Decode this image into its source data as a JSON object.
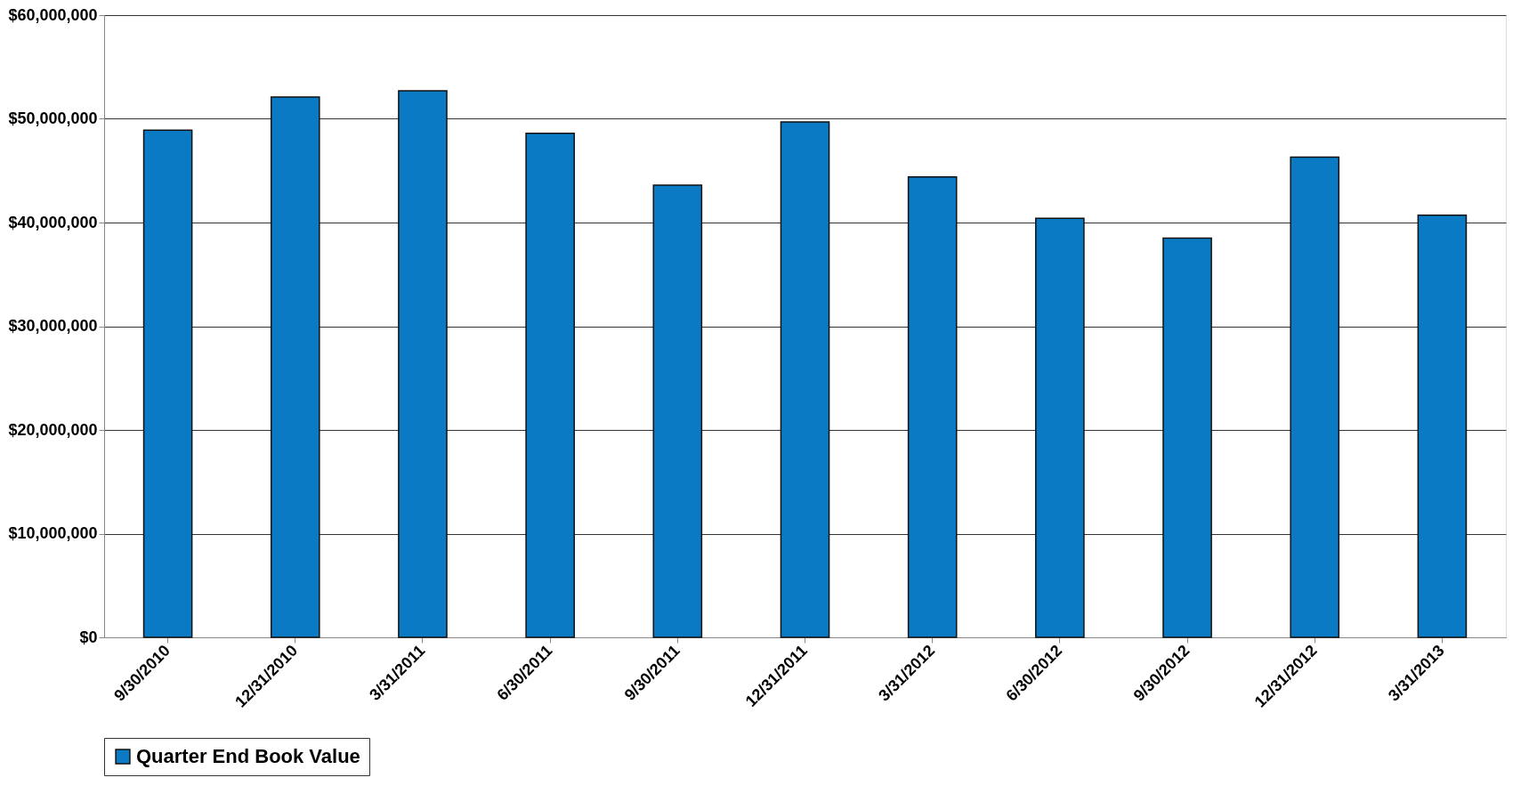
{
  "chart_data": {
    "type": "bar",
    "categories": [
      "9/30/2010",
      "12/31/2010",
      "3/31/2011",
      "6/30/2011",
      "9/30/2011",
      "12/31/2011",
      "3/31/2012",
      "6/30/2012",
      "9/30/2012",
      "12/31/2012",
      "3/31/2013"
    ],
    "series": [
      {
        "name": "Quarter End Book Value",
        "color": "#0a7ac4",
        "values": [
          48900000,
          52100000,
          52700000,
          48600000,
          43600000,
          49700000,
          44400000,
          40400000,
          38500000,
          46300000,
          40700000
        ]
      }
    ],
    "ylim": [
      0,
      60000000
    ],
    "yticks": [
      {
        "value": 0,
        "label": "$0"
      },
      {
        "value": 10000000,
        "label": "$10,000,000"
      },
      {
        "value": 20000000,
        "label": "$20,000,000"
      },
      {
        "value": 30000000,
        "label": "$30,000,000"
      },
      {
        "value": 40000000,
        "label": "$40,000,000"
      },
      {
        "value": 50000000,
        "label": "$50,000,000"
      },
      {
        "value": 60000000,
        "label": "$60,000,000"
      }
    ],
    "grid": "y",
    "legend": "bottom"
  }
}
